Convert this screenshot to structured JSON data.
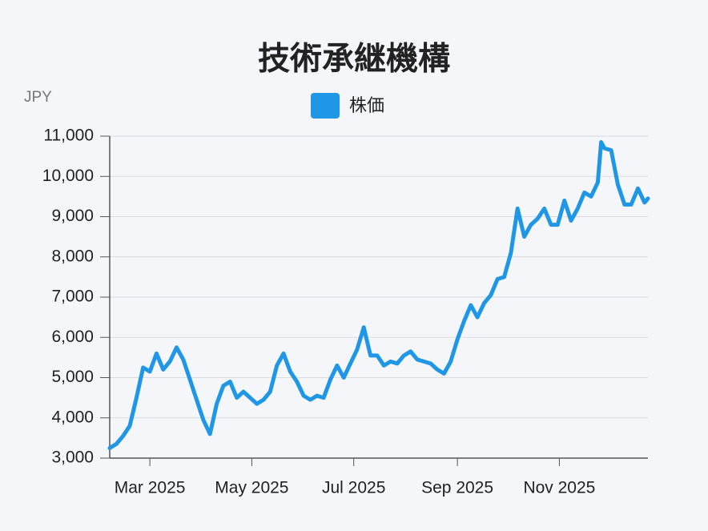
{
  "chart_data": {
    "type": "line",
    "title": "技術承継機構",
    "y_label": "JPY",
    "x": [
      "2025-02-05",
      "2025-02-09",
      "2025-02-13",
      "2025-02-17",
      "2025-02-21",
      "2025-02-25",
      "2025-03-01",
      "2025-03-05",
      "2025-03-09",
      "2025-03-13",
      "2025-03-17",
      "2025-03-21",
      "2025-03-25",
      "2025-03-29",
      "2025-04-02",
      "2025-04-06",
      "2025-04-10",
      "2025-04-14",
      "2025-04-18",
      "2025-04-22",
      "2025-04-26",
      "2025-04-30",
      "2025-05-04",
      "2025-05-08",
      "2025-05-12",
      "2025-05-16",
      "2025-05-20",
      "2025-05-24",
      "2025-05-28",
      "2025-06-01",
      "2025-06-05",
      "2025-06-09",
      "2025-06-13",
      "2025-06-17",
      "2025-06-21",
      "2025-06-25",
      "2025-06-29",
      "2025-07-03",
      "2025-07-07",
      "2025-07-11",
      "2025-07-15",
      "2025-07-19",
      "2025-07-23",
      "2025-07-27",
      "2025-07-31",
      "2025-08-04",
      "2025-08-08",
      "2025-08-12",
      "2025-08-16",
      "2025-08-20",
      "2025-08-24",
      "2025-08-28",
      "2025-09-01",
      "2025-09-05",
      "2025-09-09",
      "2025-09-13",
      "2025-09-17",
      "2025-09-21",
      "2025-09-25",
      "2025-09-29",
      "2025-10-03",
      "2025-10-07",
      "2025-10-11",
      "2025-10-15",
      "2025-10-19",
      "2025-10-23",
      "2025-10-27",
      "2025-10-31",
      "2025-11-04",
      "2025-11-08",
      "2025-11-12",
      "2025-11-16",
      "2025-11-20",
      "2025-11-24",
      "2025-11-26",
      "2025-11-28",
      "2025-12-02",
      "2025-12-06",
      "2025-12-10",
      "2025-12-14",
      "2025-12-18",
      "2025-12-22",
      "2025-12-24"
    ],
    "series": [
      {
        "name": "株価",
        "color": "#1f97e6",
        "values": [
          3250,
          3350,
          3550,
          3800,
          4500,
          5250,
          5150,
          5600,
          5200,
          5400,
          5750,
          5450,
          4950,
          4450,
          3950,
          3600,
          4350,
          4800,
          4900,
          4500,
          4650,
          4500,
          4350,
          4450,
          4650,
          5300,
          5600,
          5150,
          4900,
          4550,
          4450,
          4550,
          4500,
          4950,
          5300,
          5000,
          5350,
          5700,
          6250,
          5550,
          5550,
          5300,
          5400,
          5350,
          5550,
          5650,
          5450,
          5400,
          5350,
          5200,
          5100,
          5400,
          5950,
          6400,
          6800,
          6500,
          6850,
          7050,
          7450,
          7500,
          8100,
          9200,
          8500,
          8800,
          8950,
          9200,
          8800,
          8800,
          9400,
          8900,
          9200,
          9600,
          9500,
          9850,
          10850,
          10700,
          10650,
          9800,
          9300,
          9300,
          9700,
          9350,
          9450
        ]
      }
    ],
    "xlim": [
      "2025-02-05",
      "2025-12-24"
    ],
    "xticks": [
      {
        "value": "2025-03-01",
        "label": "Mar 2025"
      },
      {
        "value": "2025-05-01",
        "label": "May 2025"
      },
      {
        "value": "2025-07-01",
        "label": "Jul 2025"
      },
      {
        "value": "2025-09-01",
        "label": "Sep 2025"
      },
      {
        "value": "2025-11-01",
        "label": "Nov 2025"
      }
    ],
    "ylim": [
      3000,
      11000
    ],
    "yticks": [
      {
        "value": 3000,
        "label": "3,000"
      },
      {
        "value": 4000,
        "label": "4,000"
      },
      {
        "value": 5000,
        "label": "5,000"
      },
      {
        "value": 6000,
        "label": "6,000"
      },
      {
        "value": 7000,
        "label": "7,000"
      },
      {
        "value": 8000,
        "label": "8,000"
      },
      {
        "value": 9000,
        "label": "9,000"
      },
      {
        "value": 10000,
        "label": "10,000"
      },
      {
        "value": 11000,
        "label": "11,000"
      }
    ],
    "grid": true,
    "legend": "top"
  }
}
